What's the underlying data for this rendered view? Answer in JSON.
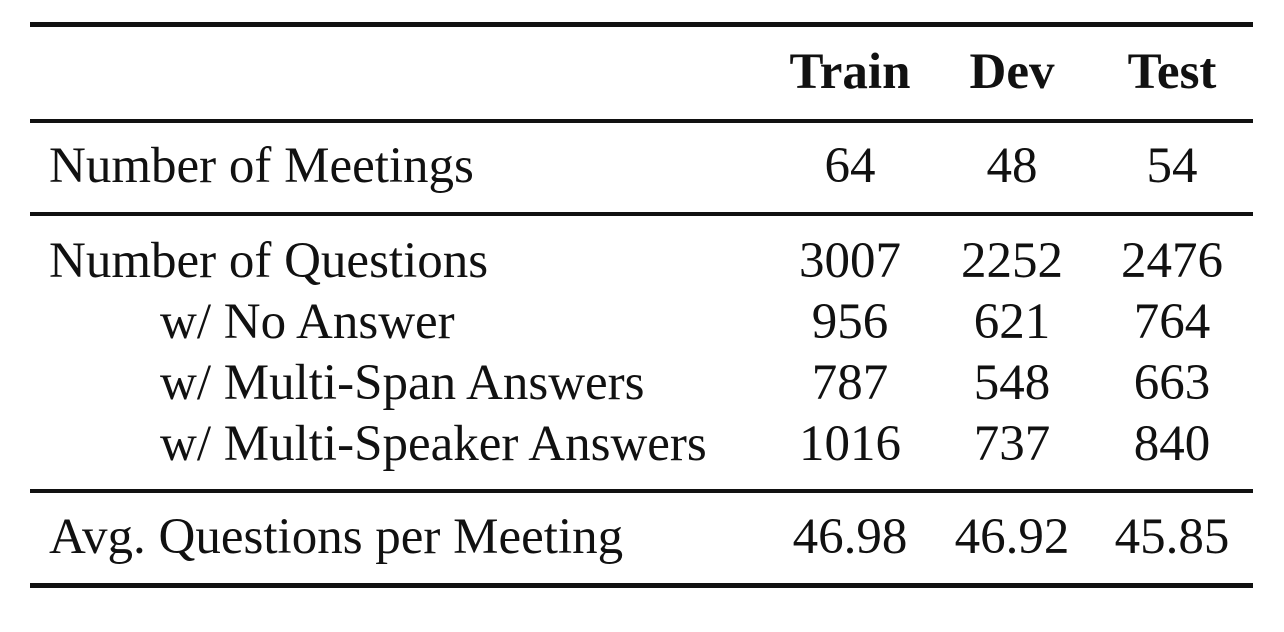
{
  "table": {
    "header": [
      "Train",
      "Dev",
      "Test"
    ],
    "rows": [
      {
        "label": "Number of Meetings",
        "indent": false,
        "values": [
          "64",
          "48",
          "54"
        ]
      },
      {
        "label": "Number of Questions",
        "indent": false,
        "values": [
          "3007",
          "2252",
          "2476"
        ]
      },
      {
        "label": "w/ No Answer",
        "indent": true,
        "values": [
          "956",
          "621",
          "764"
        ]
      },
      {
        "label": "w/ Multi-Span Answers",
        "indent": true,
        "values": [
          "787",
          "548",
          "663"
        ]
      },
      {
        "label": "w/ Multi-Speaker Answers",
        "indent": true,
        "values": [
          "1016",
          "737",
          "840"
        ]
      },
      {
        "label": "Avg. Questions per Meeting",
        "indent": false,
        "values": [
          "46.98",
          "46.92",
          "45.85"
        ]
      }
    ]
  }
}
